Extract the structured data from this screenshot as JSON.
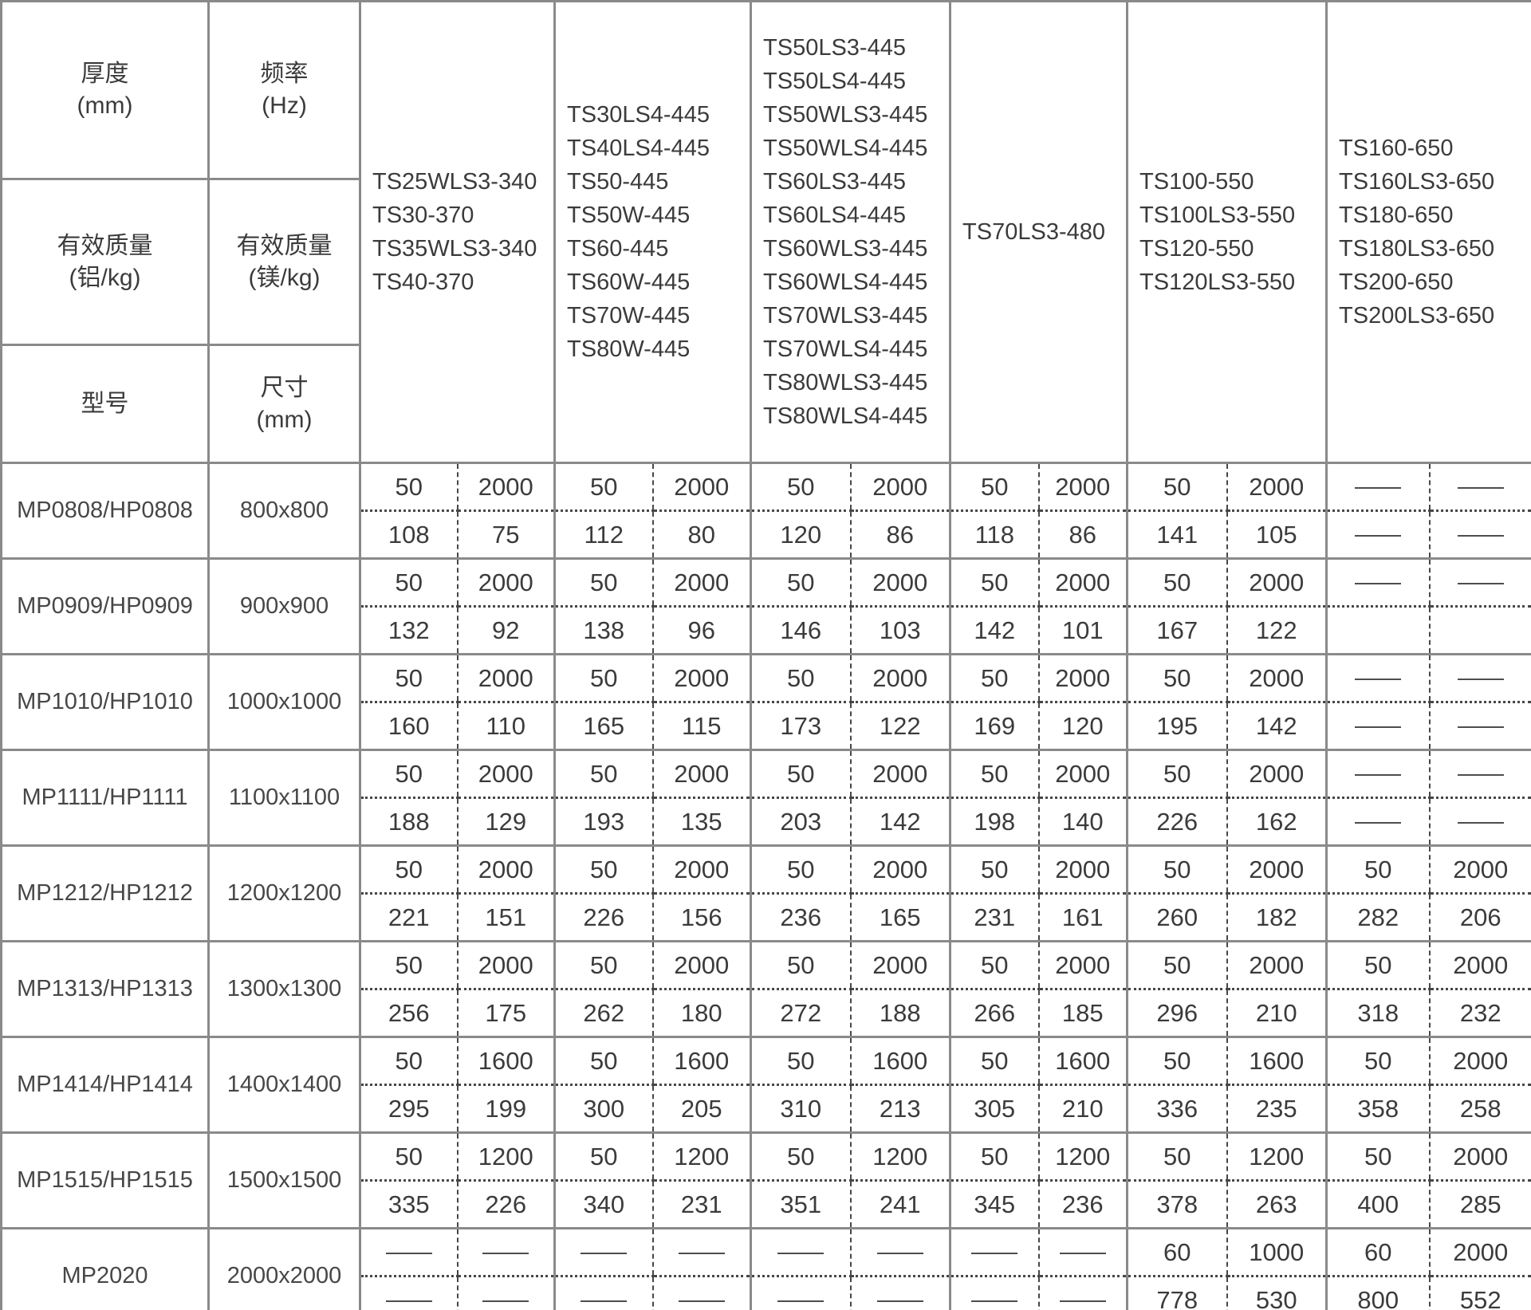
{
  "table": {
    "corner": {
      "thickness": "厚度\n(mm)",
      "frequency": "频率\n(Hz)",
      "mass_al": "有效质量\n(铝/kg)",
      "mass_mg": "有效质量\n(镁/kg)",
      "model": "型号",
      "size": "尺寸\n(mm)"
    },
    "groups": [
      {
        "models": [
          "TS25WLS3-340",
          "TS30-370",
          "TS35WLS3-340",
          "TS40-370"
        ]
      },
      {
        "models": [
          "TS30LS4-445",
          "TS40LS4-445",
          "TS50-445",
          "TS50W-445",
          "TS60-445",
          "TS60W-445",
          "TS70W-445",
          "TS80W-445"
        ]
      },
      {
        "models": [
          "TS50LS3-445",
          "TS50LS4-445",
          "TS50WLS3-445",
          "TS50WLS4-445",
          "TS60LS3-445",
          "TS60LS4-445",
          "TS60WLS3-445",
          "TS60WLS4-445",
          "TS70WLS3-445",
          "TS70WLS4-445",
          "TS80WLS3-445",
          "TS80WLS4-445"
        ]
      },
      {
        "models": [
          "TS70LS3-480"
        ]
      },
      {
        "models": [
          "TS100-550",
          "TS100LS3-550",
          "TS120-550",
          "TS120LS3-550"
        ]
      },
      {
        "models": [
          "TS160-650",
          "TS160LS3-650",
          "TS180-650",
          "TS180LS3-650",
          "TS200-650",
          "TS200LS3-650"
        ]
      }
    ],
    "rows": [
      {
        "model": "MP0808/HP0808",
        "size": "800x800",
        "cells": [
          [
            "50",
            "2000",
            "108",
            "75"
          ],
          [
            "50",
            "2000",
            "112",
            "80"
          ],
          [
            "50",
            "2000",
            "120",
            "86"
          ],
          [
            "50",
            "2000",
            "118",
            "86"
          ],
          [
            "50",
            "2000",
            "141",
            "105"
          ],
          [
            "-",
            "-",
            "-",
            "-"
          ]
        ]
      },
      {
        "model": "MP0909/HP0909",
        "size": "900x900",
        "cells": [
          [
            "50",
            "2000",
            "132",
            "92"
          ],
          [
            "50",
            "2000",
            "138",
            "96"
          ],
          [
            "50",
            "2000",
            "146",
            "103"
          ],
          [
            "50",
            "2000",
            "142",
            "101"
          ],
          [
            "50",
            "2000",
            "167",
            "122"
          ],
          [
            "-",
            "-",
            "",
            ""
          ]
        ]
      },
      {
        "model": "MP1010/HP1010",
        "size": "1000x1000",
        "cells": [
          [
            "50",
            "2000",
            "160",
            "110"
          ],
          [
            "50",
            "2000",
            "165",
            "115"
          ],
          [
            "50",
            "2000",
            "173",
            "122"
          ],
          [
            "50",
            "2000",
            "169",
            "120"
          ],
          [
            "50",
            "2000",
            "195",
            "142"
          ],
          [
            "-",
            "-",
            "-",
            "-"
          ]
        ]
      },
      {
        "model": "MP1111/HP1111",
        "size": "1100x1100",
        "cells": [
          [
            "50",
            "2000",
            "188",
            "129"
          ],
          [
            "50",
            "2000",
            "193",
            "135"
          ],
          [
            "50",
            "2000",
            "203",
            "142"
          ],
          [
            "50",
            "2000",
            "198",
            "140"
          ],
          [
            "50",
            "2000",
            "226",
            "162"
          ],
          [
            "-",
            "-",
            "-",
            "-"
          ]
        ]
      },
      {
        "model": "MP1212/HP1212",
        "size": "1200x1200",
        "cells": [
          [
            "50",
            "2000",
            "221",
            "151"
          ],
          [
            "50",
            "2000",
            "226",
            "156"
          ],
          [
            "50",
            "2000",
            "236",
            "165"
          ],
          [
            "50",
            "2000",
            "231",
            "161"
          ],
          [
            "50",
            "2000",
            "260",
            "182"
          ],
          [
            "50",
            "2000",
            "282",
            "206"
          ]
        ]
      },
      {
        "model": "MP1313/HP1313",
        "size": "1300x1300",
        "cells": [
          [
            "50",
            "2000",
            "256",
            "175"
          ],
          [
            "50",
            "2000",
            "262",
            "180"
          ],
          [
            "50",
            "2000",
            "272",
            "188"
          ],
          [
            "50",
            "2000",
            "266",
            "185"
          ],
          [
            "50",
            "2000",
            "296",
            "210"
          ],
          [
            "50",
            "2000",
            "318",
            "232"
          ]
        ]
      },
      {
        "model": "MP1414/HP1414",
        "size": "1400x1400",
        "cells": [
          [
            "50",
            "1600",
            "295",
            "199"
          ],
          [
            "50",
            "1600",
            "300",
            "205"
          ],
          [
            "50",
            "1600",
            "310",
            "213"
          ],
          [
            "50",
            "1600",
            "305",
            "210"
          ],
          [
            "50",
            "1600",
            "336",
            "235"
          ],
          [
            "50",
            "2000",
            "358",
            "258"
          ]
        ]
      },
      {
        "model": "MP1515/HP1515",
        "size": "1500x1500",
        "cells": [
          [
            "50",
            "1200",
            "335",
            "226"
          ],
          [
            "50",
            "1200",
            "340",
            "231"
          ],
          [
            "50",
            "1200",
            "351",
            "241"
          ],
          [
            "50",
            "1200",
            "345",
            "236"
          ],
          [
            "50",
            "1200",
            "378",
            "263"
          ],
          [
            "50",
            "2000",
            "400",
            "285"
          ]
        ]
      },
      {
        "model": "MP2020",
        "size": "2000x2000",
        "cells": [
          [
            "-",
            "-",
            "-",
            "-"
          ],
          [
            "-",
            "-",
            "-",
            "-"
          ],
          [
            "-",
            "-",
            "-",
            "-"
          ],
          [
            "-",
            "-",
            "-",
            "-"
          ],
          [
            "60",
            "1000",
            "778",
            "530"
          ],
          [
            "60",
            "2000",
            "800",
            "552"
          ]
        ]
      }
    ]
  }
}
